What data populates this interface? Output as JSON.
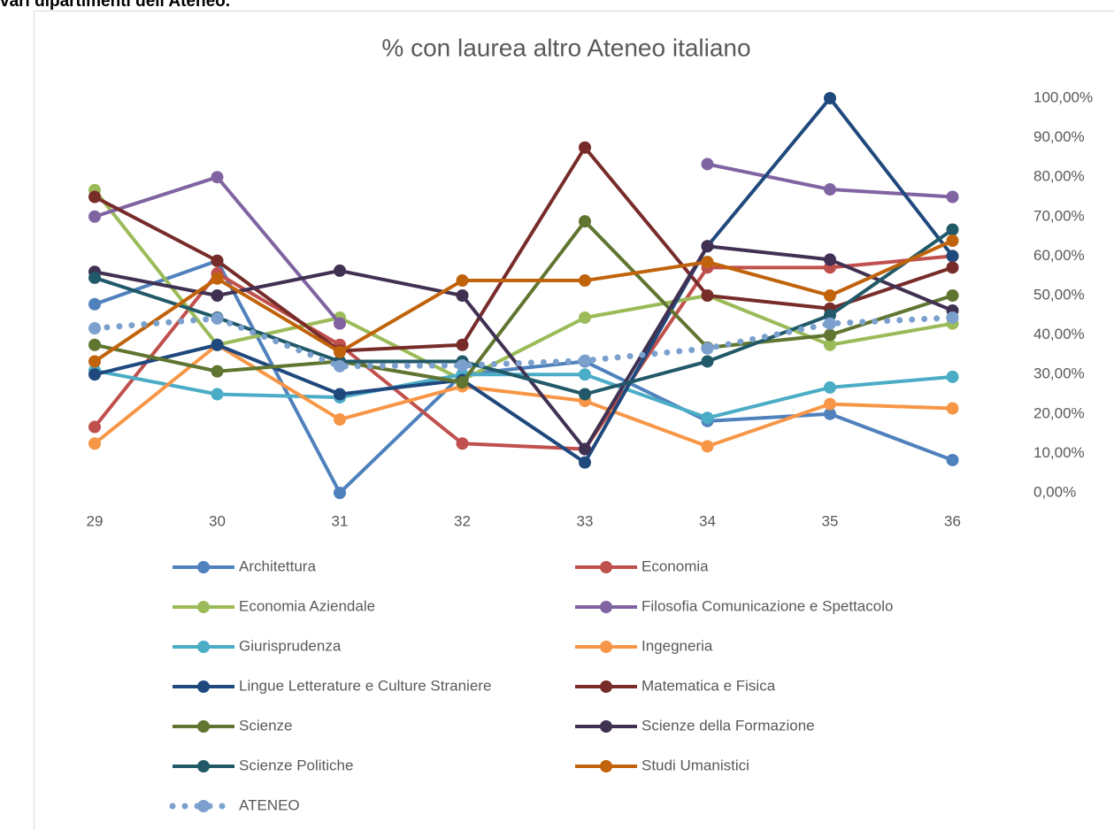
{
  "heading": "vari dipartimenti dell'Ateneo.",
  "chart_data": {
    "type": "line",
    "title": "% con laurea altro Ateneo italiano",
    "categories": [
      "29",
      "30",
      "31",
      "32",
      "33",
      "34",
      "35",
      "36"
    ],
    "ylim": [
      0,
      100
    ],
    "yticks": [
      {
        "value": 0,
        "label": "0,00%"
      },
      {
        "value": 10,
        "label": "10,00%"
      },
      {
        "value": 20,
        "label": "20,00%"
      },
      {
        "value": 30,
        "label": "30,00%"
      },
      {
        "value": 40,
        "label": "40,00%"
      },
      {
        "value": 50,
        "label": "50,00%"
      },
      {
        "value": 60,
        "label": "60,00%"
      },
      {
        "value": 70,
        "label": "70,00%"
      },
      {
        "value": 80,
        "label": "80,00%"
      },
      {
        "value": 90,
        "label": "90,00%"
      },
      {
        "value": 100,
        "label": "100,00%"
      }
    ],
    "grid": false,
    "legend": "bottom",
    "series": [
      {
        "name": "Architettura",
        "color": "#4f81bd",
        "values": [
          47.8,
          58.8,
          0,
          30,
          33.3,
          18.2,
          20,
          8.3
        ]
      },
      {
        "name": "Economia",
        "color": "#c0504d",
        "values": [
          16.7,
          55.6,
          37.5,
          12.5,
          11.1,
          57.1,
          57.1,
          60
        ]
      },
      {
        "name": "Economia Aziendale",
        "color": "#9bbb59",
        "values": [
          76.7,
          37.5,
          44.4,
          28.6,
          44.4,
          50,
          37.5,
          42.9
        ]
      },
      {
        "name": "Filosofia Comunicazione e Spettacolo",
        "color": "#8064a2",
        "values": [
          70,
          80,
          42.9,
          null,
          null,
          83.3,
          76.9,
          75
        ]
      },
      {
        "name": "Giurisprudenza",
        "color": "#4bacc6",
        "values": [
          31,
          25,
          24.2,
          30,
          30,
          19,
          26.7,
          29.4
        ]
      },
      {
        "name": "Ingegneria",
        "color": "#f79646",
        "values": [
          12.5,
          37.5,
          18.6,
          27,
          23.3,
          11.8,
          22.5,
          21.4
        ]
      },
      {
        "name": "Lingue Letterature e Culture Straniere",
        "color": "#1f497d",
        "values": [
          30,
          37.5,
          25,
          28.6,
          7.7,
          62.5,
          100,
          60
        ]
      },
      {
        "name": "Matematica e Fisica",
        "color": "#772c2a",
        "values": [
          75,
          58.8,
          36,
          37.5,
          87.5,
          50,
          46.7,
          57.1
        ]
      },
      {
        "name": "Scienze",
        "color": "#5f7530",
        "values": [
          37.5,
          30.8,
          33.3,
          28,
          68.8,
          36.8,
          40,
          50
        ]
      },
      {
        "name": "Scienze della Formazione",
        "color": "#403152",
        "values": [
          56,
          50,
          56.3,
          50,
          11.1,
          62.5,
          59.1,
          46.2
        ]
      },
      {
        "name": "Scienze Politiche",
        "color": "#215968",
        "values": [
          54.5,
          44.4,
          33.3,
          33.3,
          25,
          33.3,
          45,
          66.7
        ]
      },
      {
        "name": "Studi Umanistici",
        "color": "#c0630a",
        "values": [
          33.3,
          54.3,
          35.7,
          53.8,
          53.8,
          58.5,
          50,
          63.9
        ]
      },
      {
        "name": "ATENEO",
        "color": "#7ba0cd",
        "dotted": true,
        "values": [
          41.7,
          44.2,
          32.1,
          32.3,
          33.5,
          36.6,
          42.9,
          44.4
        ]
      }
    ]
  }
}
